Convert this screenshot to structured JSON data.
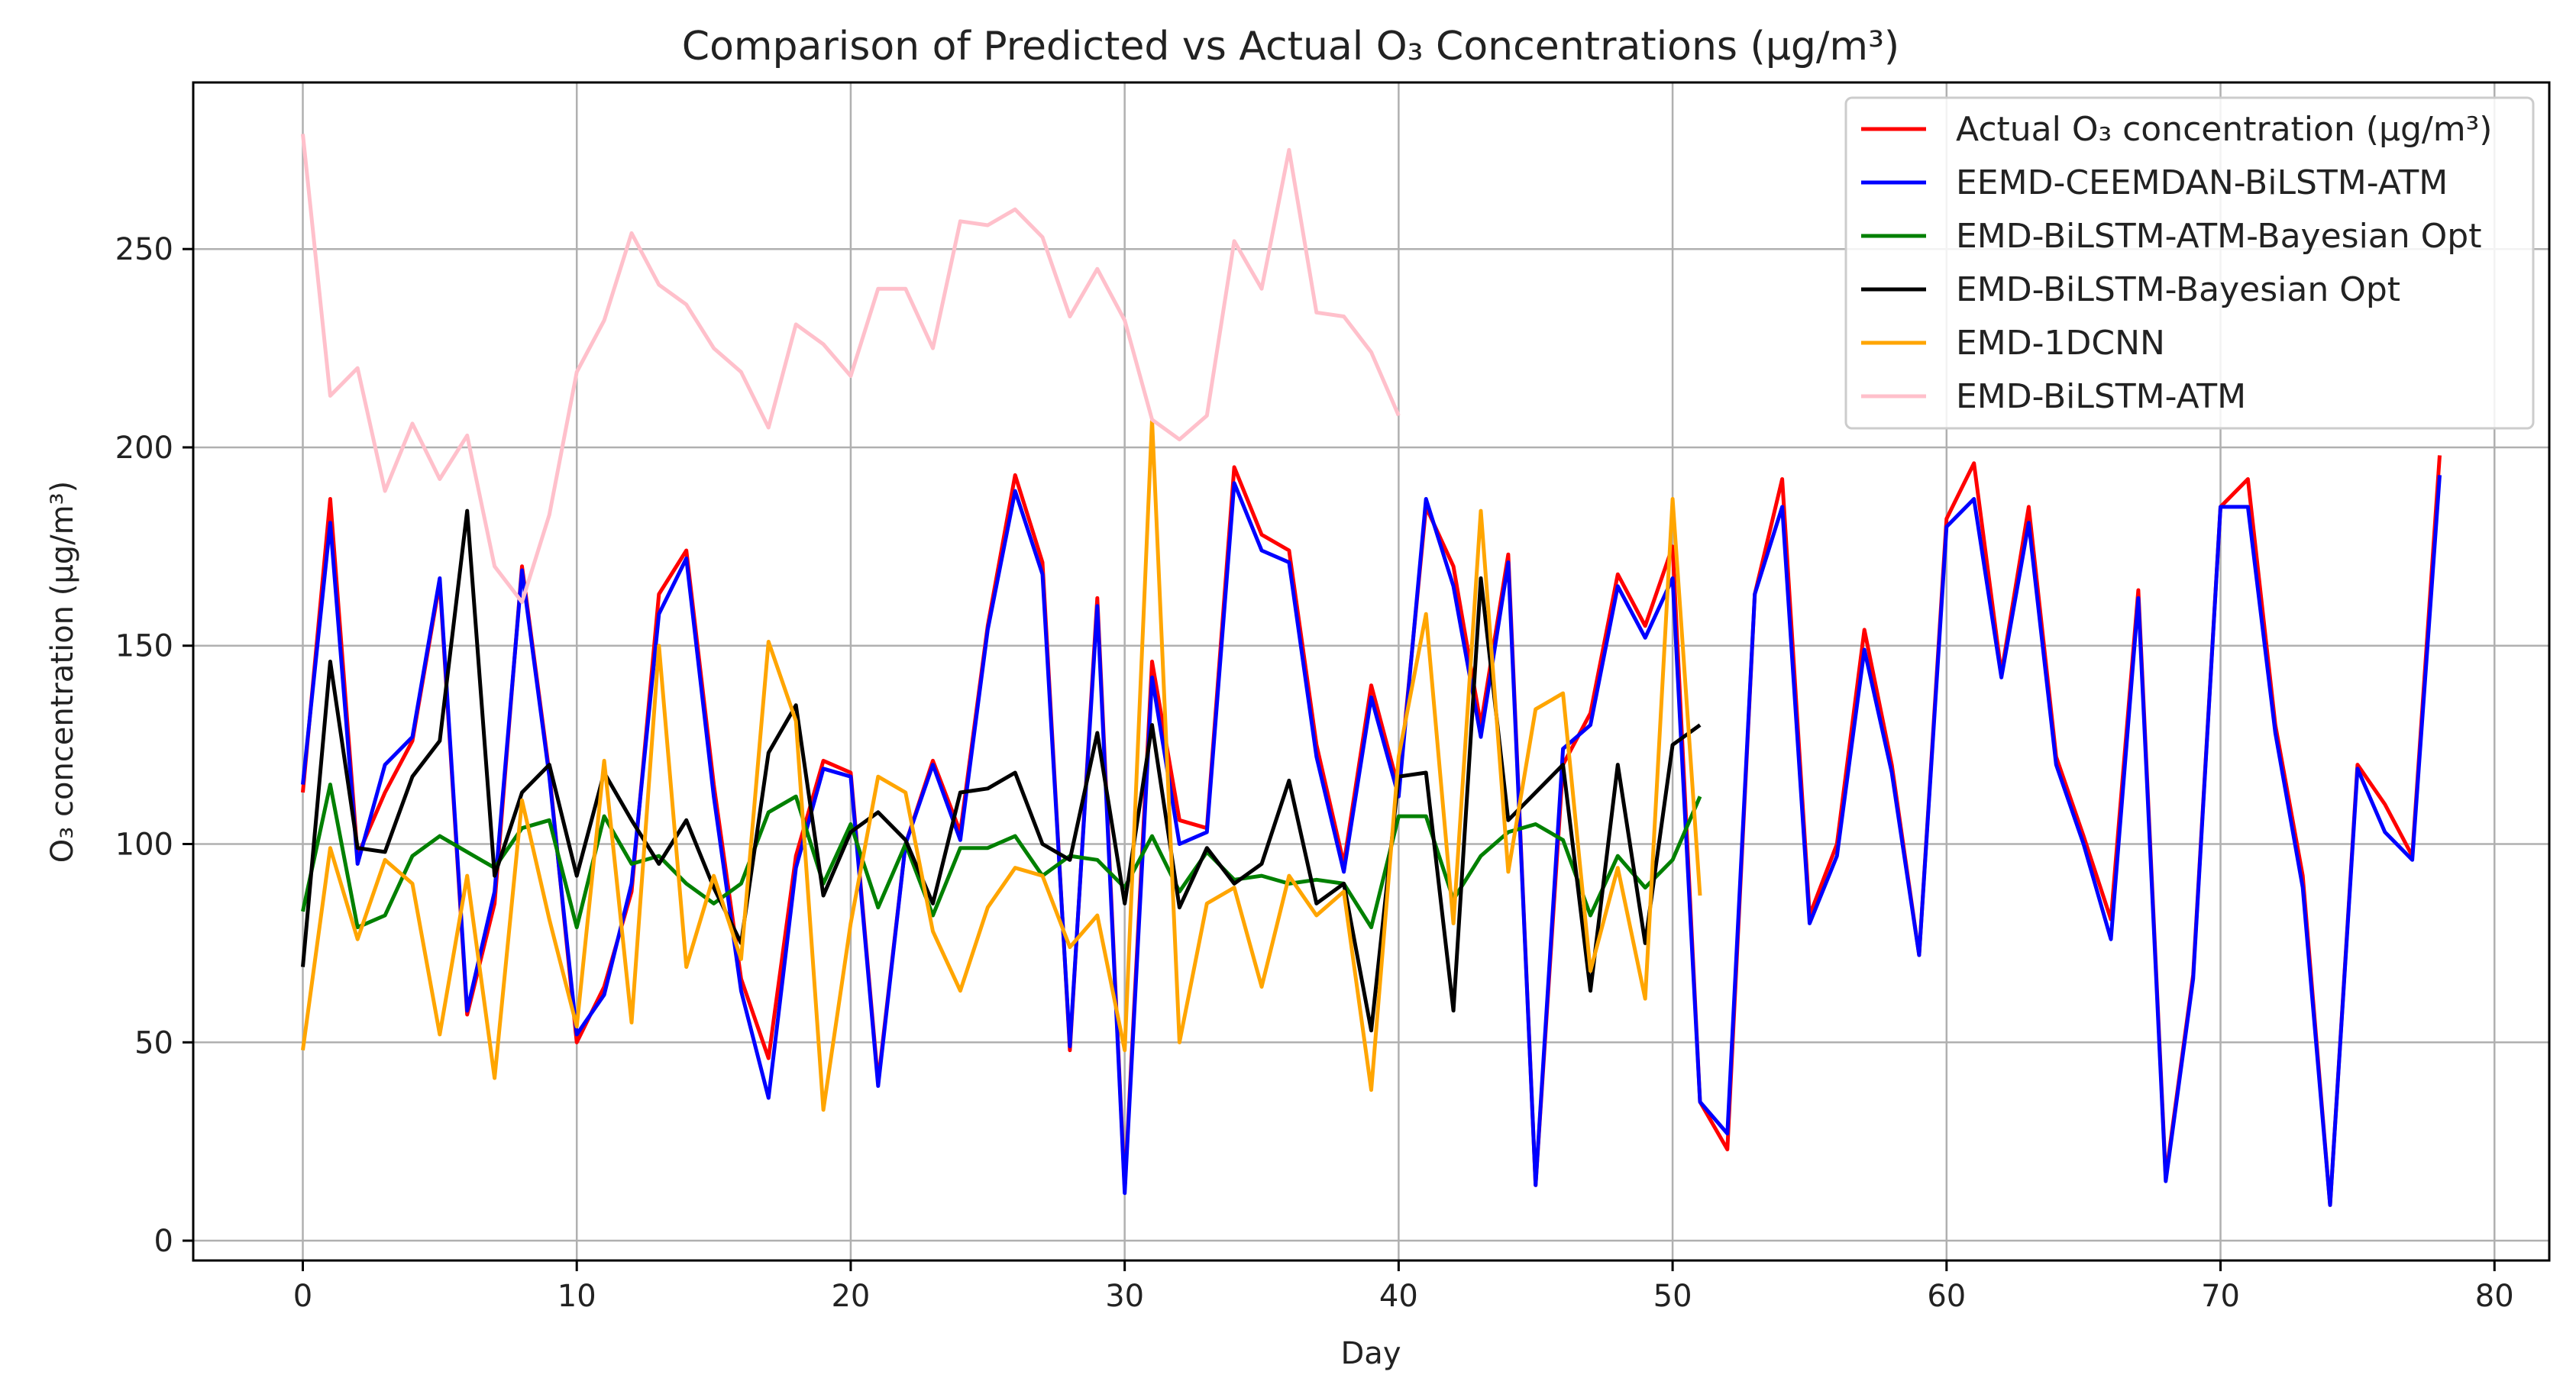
{
  "chart_data": {
    "type": "line",
    "title": "Comparison of Predicted vs Actual O₃ Concentrations (μg/m³)",
    "xlabel": "Day",
    "ylabel": "O₃ concentration (μg/m³)",
    "xlim": [
      -4,
      82
    ],
    "ylim": [
      -5,
      292
    ],
    "xticks": [
      0,
      10,
      20,
      30,
      40,
      50,
      60,
      70,
      80
    ],
    "yticks": [
      0,
      50,
      100,
      150,
      200,
      250
    ],
    "grid": true,
    "legend_position": "top-right",
    "series": [
      {
        "name": "Actual O₃ concentration (μg/m³)",
        "color": "#ff0000",
        "x": [
          0,
          1,
          2,
          3,
          4,
          5,
          6,
          7,
          8,
          9,
          10,
          11,
          12,
          13,
          14,
          15,
          16,
          17,
          18,
          19,
          20,
          21,
          22,
          23,
          24,
          25,
          26,
          27,
          28,
          29,
          30,
          31,
          32,
          33,
          34,
          35,
          36,
          37,
          38,
          39,
          40,
          41,
          42,
          43,
          44,
          45,
          46,
          47,
          48,
          49,
          50,
          51,
          52,
          53,
          54,
          55,
          56,
          57,
          58,
          59,
          60,
          61,
          62,
          63,
          64,
          65,
          66,
          67,
          68,
          69,
          70,
          71,
          72,
          73,
          74,
          75,
          76,
          77,
          78
        ],
        "values": [
          113,
          187,
          97,
          113,
          126,
          166,
          57,
          85,
          170,
          118,
          50,
          64,
          88,
          163,
          174,
          115,
          66,
          46,
          97,
          121,
          118,
          40,
          100,
          121,
          103,
          155,
          193,
          171,
          48,
          162,
          13,
          146,
          106,
          104,
          195,
          178,
          174,
          125,
          95,
          140,
          114,
          185,
          170,
          130,
          173,
          14,
          120,
          133,
          168,
          155,
          175,
          35,
          23,
          163,
          192,
          82,
          100,
          154,
          120,
          72,
          182,
          196,
          143,
          185,
          122,
          102,
          81,
          164,
          16,
          67,
          185,
          192,
          130,
          92,
          9,
          120,
          110,
          97,
          198
        ]
      },
      {
        "name": "EEMD-CEEMDAN-BiLSTM-ATM",
        "color": "#0000ff",
        "x": [
          0,
          1,
          2,
          3,
          4,
          5,
          6,
          7,
          8,
          9,
          10,
          11,
          12,
          13,
          14,
          15,
          16,
          17,
          18,
          19,
          20,
          21,
          22,
          23,
          24,
          25,
          26,
          27,
          28,
          29,
          30,
          31,
          32,
          33,
          34,
          35,
          36,
          37,
          38,
          39,
          40,
          41,
          42,
          43,
          44,
          45,
          46,
          47,
          48,
          49,
          50,
          51,
          52,
          53,
          54,
          55,
          56,
          57,
          58,
          59,
          60,
          61,
          62,
          63,
          64,
          65,
          66,
          67,
          68,
          69,
          70,
          71,
          72,
          73,
          74,
          75,
          76,
          77,
          78
        ],
        "values": [
          115,
          181,
          95,
          120,
          127,
          167,
          58,
          88,
          169,
          117,
          52,
          62,
          90,
          158,
          172,
          112,
          63,
          36,
          94,
          119,
          117,
          39,
          100,
          120,
          101,
          154,
          189,
          168,
          49,
          160,
          12,
          142,
          100,
          103,
          191,
          174,
          171,
          122,
          93,
          137,
          112,
          187,
          165,
          127,
          171,
          14,
          124,
          130,
          165,
          152,
          167,
          35,
          27,
          163,
          185,
          80,
          97,
          149,
          118,
          72,
          180,
          187,
          142,
          181,
          120,
          100,
          76,
          162,
          15,
          66,
          185,
          185,
          128,
          89,
          9,
          119,
          103,
          96,
          193
        ]
      },
      {
        "name": "EMD-BiLSTM-ATM-Bayesian Opt",
        "color": "#008000",
        "x": [
          0,
          1,
          2,
          3,
          4,
          5,
          6,
          7,
          8,
          9,
          10,
          11,
          12,
          13,
          14,
          15,
          16,
          17,
          18,
          19,
          20,
          21,
          22,
          23,
          24,
          25,
          26,
          27,
          28,
          29,
          30,
          31,
          32,
          33,
          34,
          35,
          36,
          37,
          38,
          39,
          40,
          41,
          42,
          43,
          44,
          45,
          46,
          47,
          48,
          49,
          50,
          51
        ],
        "values": [
          83,
          115,
          79,
          82,
          97,
          102,
          98,
          94,
          104,
          106,
          79,
          107,
          95,
          97,
          90,
          85,
          90,
          108,
          112,
          90,
          105,
          84,
          100,
          82,
          99,
          99,
          102,
          92,
          97,
          96,
          89,
          102,
          88,
          98,
          91,
          92,
          90,
          91,
          90,
          79,
          107,
          107,
          86,
          97,
          103,
          105,
          101,
          82,
          97,
          89,
          96,
          112
        ]
      },
      {
        "name": "EMD-BiLSTM-Bayesian Opt",
        "color": "#000000",
        "x": [
          0,
          1,
          2,
          3,
          4,
          5,
          6,
          7,
          8,
          9,
          10,
          11,
          12,
          13,
          14,
          15,
          16,
          17,
          18,
          19,
          20,
          21,
          22,
          23,
          24,
          25,
          26,
          27,
          28,
          29,
          30,
          31,
          32,
          33,
          34,
          35,
          36,
          37,
          38,
          39,
          40,
          41,
          42,
          43,
          44,
          45,
          46,
          47,
          48,
          49,
          50,
          51
        ],
        "values": [
          69,
          146,
          99,
          98,
          117,
          126,
          184,
          92,
          113,
          120,
          92,
          118,
          106,
          95,
          106,
          89,
          75,
          123,
          135,
          87,
          103,
          108,
          101,
          85,
          113,
          114,
          118,
          100,
          96,
          128,
          85,
          130,
          84,
          99,
          90,
          95,
          116,
          85,
          90,
          53,
          117,
          118,
          58,
          167,
          106,
          113,
          120,
          63,
          120,
          75,
          125,
          130
        ]
      },
      {
        "name": "EMD-1DCNN",
        "color": "#ffa500",
        "x": [
          0,
          1,
          2,
          3,
          4,
          5,
          6,
          7,
          8,
          9,
          10,
          11,
          12,
          13,
          14,
          15,
          16,
          17,
          18,
          19,
          20,
          21,
          22,
          23,
          24,
          25,
          26,
          27,
          28,
          29,
          30,
          31,
          32,
          33,
          34,
          35,
          36,
          37,
          38,
          39,
          40,
          41,
          42,
          43,
          44,
          45,
          46,
          47,
          48,
          49,
          50,
          51
        ],
        "values": [
          48,
          99,
          76,
          96,
          90,
          52,
          92,
          41,
          111,
          81,
          54,
          121,
          55,
          150,
          69,
          92,
          71,
          151,
          131,
          33,
          80,
          117,
          113,
          78,
          63,
          84,
          94,
          92,
          74,
          82,
          48,
          207,
          50,
          85,
          89,
          64,
          92,
          82,
          88,
          38,
          122,
          158,
          80,
          184,
          93,
          134,
          138,
          68,
          94,
          61,
          187,
          87
        ]
      },
      {
        "name": "EMD-BiLSTM-ATM",
        "color": "#ffc0cb",
        "x": [
          0,
          1,
          2,
          3,
          4,
          5,
          6,
          7,
          8,
          9,
          10,
          11,
          12,
          13,
          14,
          15,
          16,
          17,
          18,
          19,
          20,
          21,
          22,
          23,
          24,
          25,
          26,
          27,
          28,
          29,
          30,
          31,
          32,
          33,
          34,
          35,
          36,
          37,
          38,
          39,
          40
        ],
        "values": [
          279,
          213,
          220,
          189,
          206,
          192,
          203,
          170,
          161,
          183,
          219,
          232,
          254,
          241,
          236,
          225,
          219,
          205,
          231,
          226,
          218,
          240,
          240,
          225,
          257,
          256,
          260,
          253,
          233,
          245,
          232,
          207,
          202,
          208,
          252,
          240,
          275,
          234,
          233,
          224,
          208
        ]
      }
    ]
  }
}
